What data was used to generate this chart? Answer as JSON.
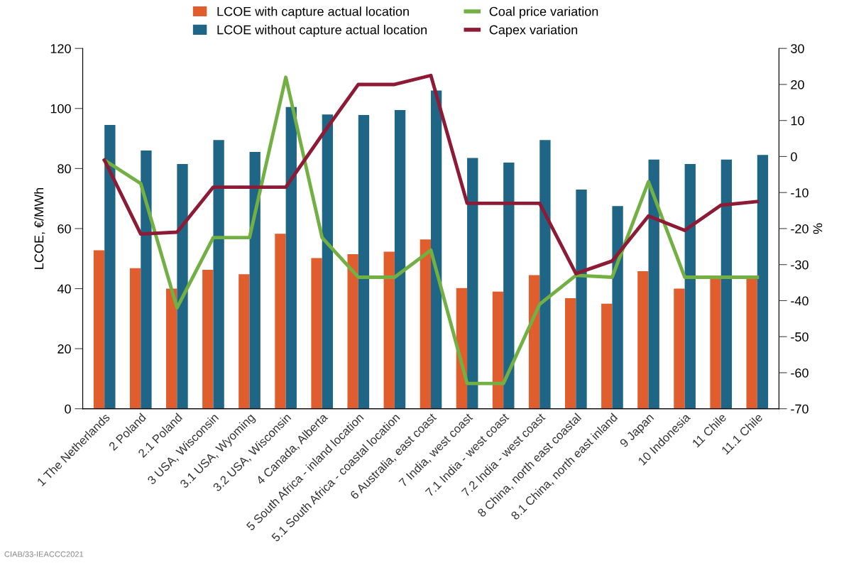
{
  "chart_data": {
    "type": "bar",
    "categories": [
      "1 The Netherlands",
      "2 Poland",
      "2.1 Poland",
      "3 USA, Wisconsin",
      "3.1 USA, Wyoming",
      "3.2 USA, Wisconsin",
      "4 Canada, Alberta",
      "5 South Africa - inland location",
      "5.1 South Africa - coastal location",
      "6 Australia, east coast",
      "7 India, west coast",
      "7.1 India - west coast",
      "7.2 India - west coast",
      "8 China, north east coastal",
      "8.1 China, north east inland",
      "9 Japan",
      "10 Indonesia",
      "11 Chile",
      "11.1 Chile"
    ],
    "series": [
      {
        "name": "LCOE with capture actual location",
        "color": "#e05e2e",
        "values": [
          52.8,
          46.8,
          40,
          46.3,
          44.8,
          58.3,
          50.2,
          51.5,
          52.3,
          56.4,
          40.2,
          39,
          44.5,
          36.8,
          35,
          45.8,
          40,
          43.5,
          43.5
        ]
      },
      {
        "name": "LCOE without capture actual location",
        "color": "#1f6585",
        "values": [
          94.5,
          86,
          81.5,
          89.5,
          85.5,
          100.5,
          98,
          97.8,
          99.5,
          106,
          83.5,
          82,
          89.5,
          73,
          67.5,
          83,
          81.5,
          83,
          84.5
        ]
      },
      {
        "name": "Coal price variation",
        "type": "line",
        "axis": "y2",
        "color": "#72b043",
        "values": [
          -1,
          -7.5,
          -42,
          -22.5,
          -22.5,
          22,
          -22.5,
          -33.5,
          -33.5,
          -26,
          -63,
          -63,
          -41,
          -33,
          -33.5,
          -7,
          -33.5,
          -33.5,
          -33.5
        ]
      },
      {
        "name": "Capex variation",
        "type": "line",
        "axis": "y2",
        "color": "#8e1b35",
        "values": [
          -1,
          -21.5,
          -21,
          -8.5,
          -8.5,
          -8.5,
          6,
          20,
          20,
          22.5,
          -13,
          -13,
          -13,
          -32.5,
          -29,
          -16.5,
          -20.5,
          -13.5,
          -12.5
        ]
      }
    ],
    "ylabel": "LCOE, €/MWh",
    "y2label": "%",
    "ylim": [
      0,
      120
    ],
    "yticks": [
      0,
      20,
      40,
      60,
      80,
      100,
      120
    ],
    "y2lim": [
      -70,
      30
    ],
    "y2ticks": [
      -70,
      -60,
      -50,
      -40,
      -30,
      -20,
      -10,
      0,
      10,
      20,
      30
    ],
    "legend": "top",
    "grid": false,
    "annotations": [
      "CIAB/33-IEACCC2021"
    ]
  }
}
